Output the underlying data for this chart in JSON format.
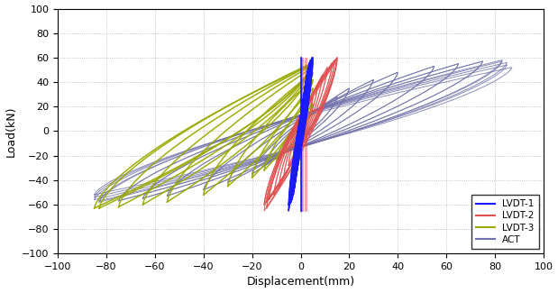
{
  "title": "",
  "xlabel": "Displacement(mm)",
  "ylabel": "Load(kN)",
  "xlim": [
    -100,
    100
  ],
  "ylim": [
    -100,
    100
  ],
  "xticks": [
    -100,
    -80,
    -60,
    -40,
    -20,
    0,
    20,
    40,
    60,
    80,
    100
  ],
  "yticks": [
    -100,
    -80,
    -60,
    -40,
    -20,
    0,
    20,
    40,
    60,
    80,
    100
  ],
  "colors": {
    "LVDT-1": "#1a1aff",
    "LVDT-2": "#e05050",
    "LVDT-3": "#9aaa00",
    "ACT": "#7070aa"
  },
  "legend_labels": [
    "LVDT-1",
    "LVDT-2",
    "LVDT-3",
    "ACT"
  ],
  "figsize": [
    6.19,
    3.25
  ],
  "dpi": 100,
  "grid_color": "#aaaaaa",
  "background": "#ffffff"
}
